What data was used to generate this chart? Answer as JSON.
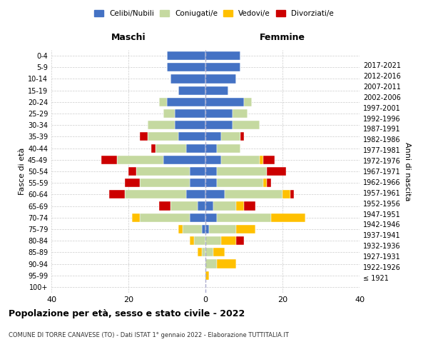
{
  "age_groups": [
    "100+",
    "95-99",
    "90-94",
    "85-89",
    "80-84",
    "75-79",
    "70-74",
    "65-69",
    "60-64",
    "55-59",
    "50-54",
    "45-49",
    "40-44",
    "35-39",
    "30-34",
    "25-29",
    "20-24",
    "15-19",
    "10-14",
    "5-9",
    "0-4"
  ],
  "birth_years": [
    "≤ 1921",
    "1922-1926",
    "1927-1931",
    "1932-1936",
    "1937-1941",
    "1942-1946",
    "1947-1951",
    "1952-1956",
    "1957-1961",
    "1962-1966",
    "1967-1971",
    "1972-1976",
    "1977-1981",
    "1982-1986",
    "1987-1991",
    "1992-1996",
    "1997-2001",
    "2002-2006",
    "2007-2011",
    "2012-2016",
    "2017-2021"
  ],
  "males": {
    "celibi": [
      0,
      0,
      0,
      0,
      0,
      1,
      4,
      2,
      5,
      4,
      4,
      11,
      5,
      7,
      8,
      8,
      10,
      7,
      9,
      10,
      10
    ],
    "coniugati": [
      0,
      0,
      0,
      1,
      3,
      5,
      13,
      7,
      16,
      13,
      14,
      12,
      8,
      8,
      7,
      3,
      2,
      0,
      0,
      0,
      0
    ],
    "vedovi": [
      0,
      0,
      0,
      1,
      1,
      1,
      2,
      0,
      0,
      0,
      0,
      0,
      0,
      0,
      0,
      0,
      0,
      0,
      0,
      0,
      0
    ],
    "divorziati": [
      0,
      0,
      0,
      0,
      0,
      0,
      0,
      3,
      4,
      4,
      2,
      4,
      1,
      2,
      0,
      0,
      0,
      0,
      0,
      0,
      0
    ]
  },
  "females": {
    "nubili": [
      0,
      0,
      0,
      0,
      0,
      1,
      3,
      2,
      5,
      3,
      3,
      4,
      3,
      4,
      7,
      7,
      10,
      6,
      8,
      9,
      9
    ],
    "coniugate": [
      0,
      0,
      3,
      2,
      4,
      7,
      14,
      6,
      15,
      12,
      13,
      10,
      6,
      5,
      7,
      4,
      2,
      0,
      0,
      0,
      0
    ],
    "vedove": [
      0,
      1,
      5,
      3,
      4,
      5,
      9,
      2,
      2,
      1,
      0,
      1,
      0,
      0,
      0,
      0,
      0,
      0,
      0,
      0,
      0
    ],
    "divorziate": [
      0,
      0,
      0,
      0,
      2,
      0,
      0,
      3,
      1,
      1,
      5,
      3,
      0,
      1,
      0,
      0,
      0,
      0,
      0,
      0,
      0
    ]
  },
  "colors": {
    "celibi": "#4472c4",
    "coniugati": "#c5d9a0",
    "vedovi": "#ffc000",
    "divorziati": "#cc0000"
  },
  "xlim": 40,
  "title": "Popolazione per età, sesso e stato civile - 2022",
  "subtitle": "COMUNE DI TORRE CANAVESE (TO) - Dati ISTAT 1° gennaio 2022 - Elaborazione TUTTITALIA.IT",
  "ylabel_left": "Fasce di età",
  "ylabel_right": "Anni di nascita",
  "xlabel_left": "Maschi",
  "xlabel_right": "Femmine",
  "bg_color": "#ffffff",
  "grid_color": "#cccccc"
}
